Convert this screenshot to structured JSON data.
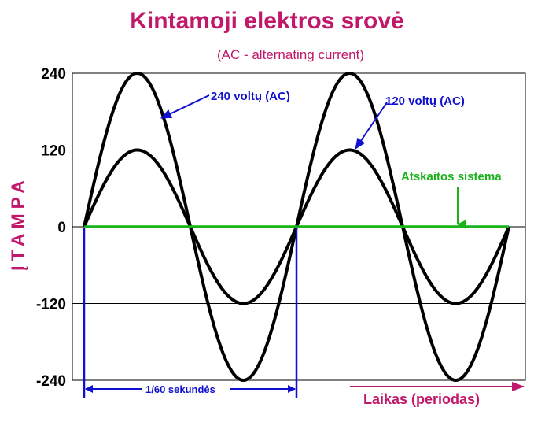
{
  "chart_data": {
    "type": "line",
    "title": "Kintamoji elektros srovė",
    "subtitle": "(AC - alternating current)",
    "ylabel": "ĮTAMPA",
    "xlabel": "Laikas (periodas)",
    "ylim": [
      -240,
      240
    ],
    "yticks": [
      240,
      120,
      0,
      -120,
      -240
    ],
    "grid": true,
    "cycles": 2,
    "x": [
      0,
      0.125,
      0.25,
      0.375,
      0.5,
      0.625,
      0.75,
      0.875,
      1,
      1.125,
      1.25,
      1.375,
      1.5,
      1.625,
      1.75,
      1.875,
      2
    ],
    "series": [
      {
        "name": "240 voltų (AC)",
        "amplitude": 240,
        "color": "#000000",
        "values": [
          0,
          170,
          240,
          170,
          0,
          -170,
          -240,
          -170,
          0,
          170,
          240,
          170,
          0,
          -170,
          -240,
          -170,
          0
        ]
      },
      {
        "name": "120 voltų (AC)",
        "amplitude": 120,
        "color": "#000000",
        "values": [
          0,
          85,
          120,
          85,
          0,
          -85,
          -120,
          -85,
          0,
          85,
          120,
          85,
          0,
          -85,
          -120,
          -85,
          0
        ]
      },
      {
        "name": "Atskaitos sistema",
        "color": "#19b219",
        "values": [
          0,
          0,
          0,
          0,
          0,
          0,
          0,
          0,
          0,
          0,
          0,
          0,
          0,
          0,
          0,
          0,
          0
        ]
      }
    ],
    "annotations": {
      "label_240": "240 voltų (AC)",
      "label_120": "120 voltų (AC)",
      "label_reference": "Atskaitos sistema",
      "period": "1/60 sekundės",
      "time_axis": "Laikas (periodas)"
    },
    "colors": {
      "title": "#c0186a",
      "blue": "#1010d0",
      "green": "#19b219",
      "grid": "#000000"
    }
  }
}
